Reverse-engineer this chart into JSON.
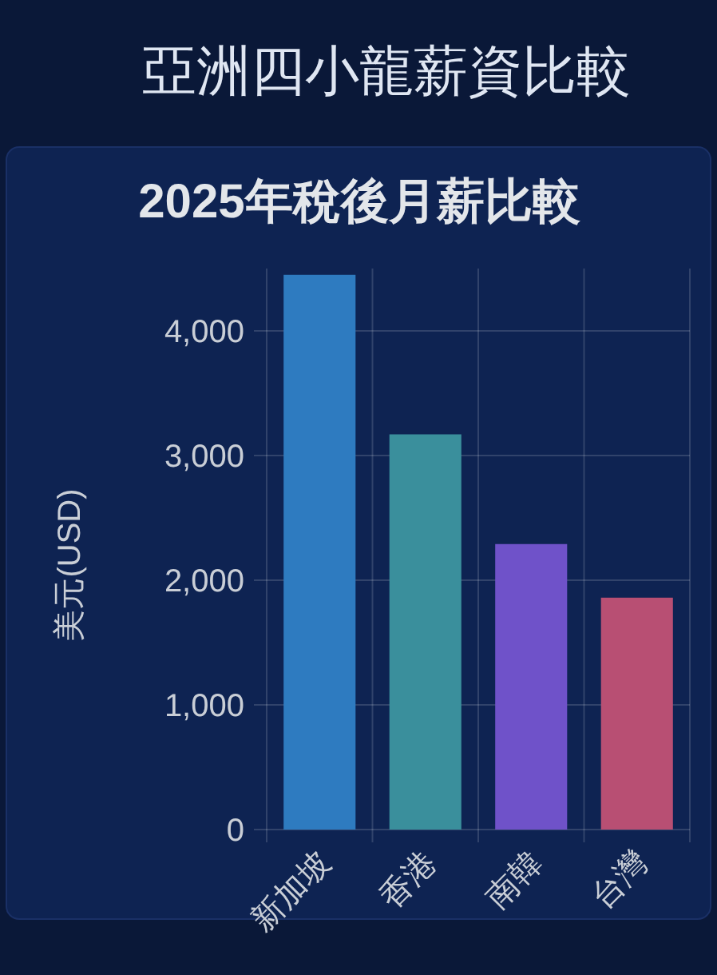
{
  "chart_data": {
    "type": "bar",
    "title": "亞洲四小龍薪資比較",
    "subtitle": "2025年稅後月薪比較",
    "ylabel": "美元(USD)",
    "categories": [
      "新加坡",
      "香港",
      "南韓",
      "台灣"
    ],
    "values": [
      4450,
      3170,
      2290,
      1860
    ],
    "colors": [
      "#2e7bc0",
      "#3a8f9c",
      "#6f52c9",
      "#b84f73"
    ],
    "ylim": [
      0,
      4500
    ],
    "yticks": [
      0,
      {
        "value": 1000,
        "label": "1,000"
      },
      {
        "value": 2000,
        "label": "2,000"
      },
      {
        "value": 3000,
        "label": "3,000"
      },
      {
        "value": 4000,
        "label": "4,000"
      }
    ],
    "grid": true
  }
}
